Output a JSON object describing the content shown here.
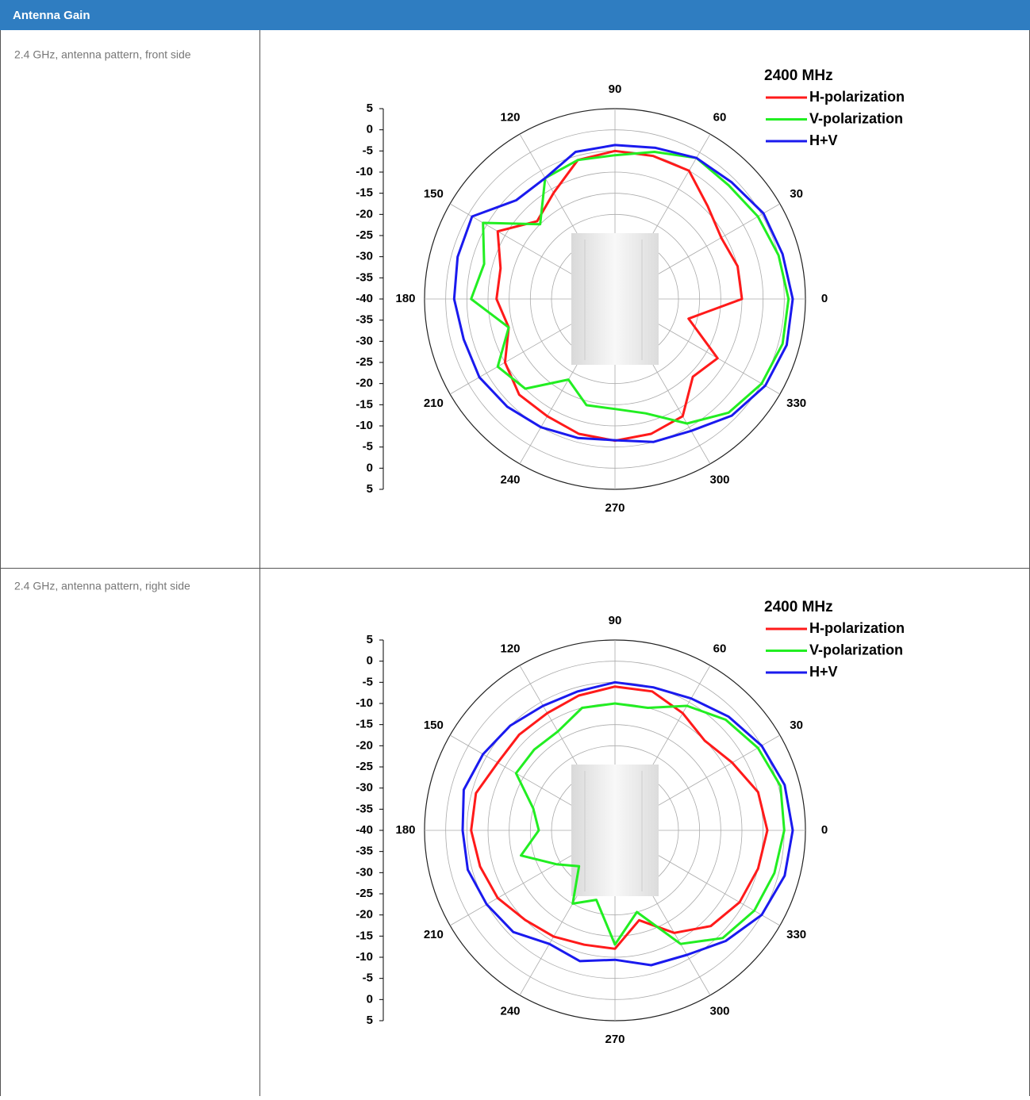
{
  "table": {
    "title": "Antenna Gain",
    "rows": [
      "2.4 GHz, antenna pattern, front side",
      "2.4 GHz, antenna pattern, right side"
    ]
  },
  "chart_data": [
    {
      "type": "polar",
      "legend_title": "2400 MHz",
      "rlim": [
        -40,
        5
      ],
      "rticks": [
        5,
        0,
        -5,
        -10,
        -15,
        -20,
        -25,
        -30,
        -35,
        -40,
        -35,
        -30,
        -25,
        -20,
        -15,
        -10,
        -5,
        0,
        5
      ],
      "thetaticks": [
        0,
        30,
        60,
        90,
        120,
        150,
        180,
        210,
        240,
        270,
        300,
        330
      ],
      "theta": [
        0,
        15,
        30,
        45,
        60,
        75,
        90,
        105,
        120,
        135,
        150,
        165,
        180,
        195,
        210,
        225,
        240,
        255,
        270,
        285,
        300,
        315,
        330,
        345
      ],
      "series": [
        {
          "name": "H-polarization",
          "color": "#ff1a1a",
          "values": [
            -10,
            -10,
            -11,
            -9,
            -5,
            -5,
            -5,
            -6,
            -11,
            -14,
            -8,
            -12,
            -12,
            -14,
            -10,
            -8,
            -8,
            -7,
            -6.5,
            -7,
            -8,
            -14,
            -12,
            -22
          ]
        },
        {
          "name": "V-polarization",
          "color": "#22ee22",
          "values": [
            1,
            0,
            -1,
            -2,
            -1.5,
            -4,
            -6,
            -6,
            -7,
            -15,
            -4,
            -8,
            -6,
            -14,
            -8,
            -10,
            -18,
            -14,
            -14,
            -12,
            -6,
            -2,
            0,
            1
          ]
        },
        {
          "name": "H+V",
          "color": "#1a1aee",
          "values": [
            2,
            1,
            0.5,
            -1,
            -1.5,
            -3,
            -3.6,
            -4,
            -7,
            -7,
            -1,
            -1.5,
            -2,
            -3,
            -3,
            -4,
            -5,
            -6,
            -6.6,
            -5,
            -4,
            -1,
            1,
            2
          ]
        }
      ]
    },
    {
      "type": "polar",
      "legend_title": "2400 MHz",
      "rlim": [
        -40,
        5
      ],
      "rticks": [
        5,
        0,
        -5,
        -10,
        -15,
        -20,
        -25,
        -30,
        -35,
        -40,
        -35,
        -30,
        -25,
        -20,
        -15,
        -10,
        -5,
        0,
        5
      ],
      "thetaticks": [
        0,
        30,
        60,
        90,
        120,
        150,
        180,
        210,
        240,
        270,
        300,
        330
      ],
      "theta": [
        0,
        15,
        30,
        45,
        60,
        75,
        90,
        105,
        120,
        135,
        150,
        165,
        180,
        195,
        210,
        225,
        240,
        255,
        270,
        285,
        300,
        315,
        330,
        345
      ],
      "series": [
        {
          "name": "H-polarization",
          "color": "#ff1a1a",
          "values": [
            -4,
            -5,
            -8,
            -10,
            -8,
            -6,
            -6,
            -7,
            -8,
            -8,
            -8,
            -6,
            -6,
            -7,
            -8,
            -10,
            -11,
            -12,
            -12,
            -18,
            -12,
            -8,
            -6,
            -5
          ]
        },
        {
          "name": "V-polarization",
          "color": "#22ee22",
          "values": [
            0,
            0.5,
            -1,
            -3,
            -6,
            -10,
            -10,
            -10,
            -13,
            -13,
            -13,
            -20,
            -22,
            -17,
            -24,
            -28,
            -20,
            -23,
            -13,
            -20,
            -9,
            -4,
            -2,
            -1
          ]
        },
        {
          "name": "H+V",
          "color": "#1a1aee",
          "values": [
            2,
            1.5,
            0,
            -2,
            -4,
            -5,
            -5,
            -6,
            -6,
            -5,
            -4,
            -3,
            -4,
            -4,
            -5,
            -6,
            -9,
            -8,
            -9.4,
            -7,
            -6,
            -3,
            0,
            1.5
          ]
        }
      ]
    }
  ]
}
